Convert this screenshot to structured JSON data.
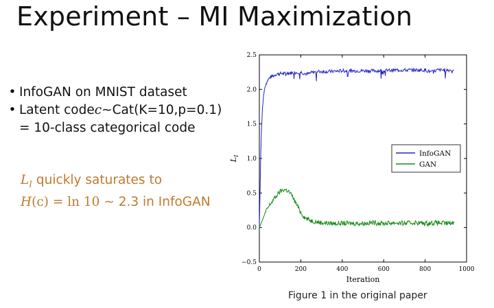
{
  "slide": {
    "title": "Experiment – MI Maximization",
    "bullets": [
      {
        "text": "InfoGAN on MNIST dataset"
      },
      {
        "prefix": "Latent code ",
        "var": "c",
        "suffix": "∼Cat(K=10,p=0.1)"
      }
    ],
    "bullet_cont": "= 10-class categorical code",
    "highlight": {
      "l_var": "L",
      "l_sub": "I",
      "line1_rest": " quickly saturates to",
      "h_var": "H",
      "h_arg": "(c)",
      "h_eq": " = ln 10 ",
      "h_tail": "∼ 2.3 in InfoGAN"
    },
    "caption": "Figure 1 in the original paper"
  },
  "chart_data": {
    "type": "line",
    "xlabel": "Iteration",
    "ylabel": "L",
    "ylabel_sub": "I",
    "xlim": [
      0,
      1000
    ],
    "ylim": [
      -0.5,
      2.5
    ],
    "xticks": [
      0,
      200,
      400,
      600,
      800,
      1000
    ],
    "yticks": [
      -0.5,
      0.0,
      0.5,
      1.0,
      1.5,
      2.0,
      2.5
    ],
    "grid": false,
    "legend": "center-right",
    "series": [
      {
        "name": "InfoGAN",
        "color": "#2323c8",
        "x": [
          0,
          3,
          6,
          10,
          15,
          20,
          25,
          30,
          40,
          50,
          60,
          70,
          80,
          100,
          120,
          150,
          200,
          230,
          260,
          300,
          350,
          400,
          450,
          500,
          550,
          600,
          650,
          700,
          750,
          800,
          830,
          860,
          900,
          940
        ],
        "y": [
          0.0,
          0.45,
          0.95,
          1.4,
          1.72,
          1.9,
          2.0,
          2.07,
          2.13,
          2.17,
          2.19,
          2.2,
          2.22,
          2.23,
          2.23,
          2.24,
          2.25,
          2.22,
          2.25,
          2.26,
          2.26,
          2.27,
          2.27,
          2.27,
          2.27,
          2.27,
          2.28,
          2.28,
          2.28,
          2.28,
          2.25,
          2.28,
          2.28,
          2.28
        ]
      },
      {
        "name": "GAN",
        "color": "#1a8c1a",
        "x": [
          0,
          10,
          20,
          30,
          40,
          60,
          80,
          100,
          120,
          140,
          160,
          180,
          200,
          220,
          250,
          280,
          300,
          350,
          400,
          450,
          500,
          550,
          600,
          650,
          700,
          750,
          800,
          850,
          900,
          940
        ],
        "y": [
          0.0,
          0.07,
          0.15,
          0.22,
          0.28,
          0.37,
          0.45,
          0.52,
          0.55,
          0.53,
          0.45,
          0.33,
          0.22,
          0.14,
          0.1,
          0.08,
          0.07,
          0.06,
          0.06,
          0.06,
          0.06,
          0.07,
          0.06,
          0.07,
          0.06,
          0.07,
          0.06,
          0.07,
          0.06,
          0.07
        ]
      }
    ]
  }
}
